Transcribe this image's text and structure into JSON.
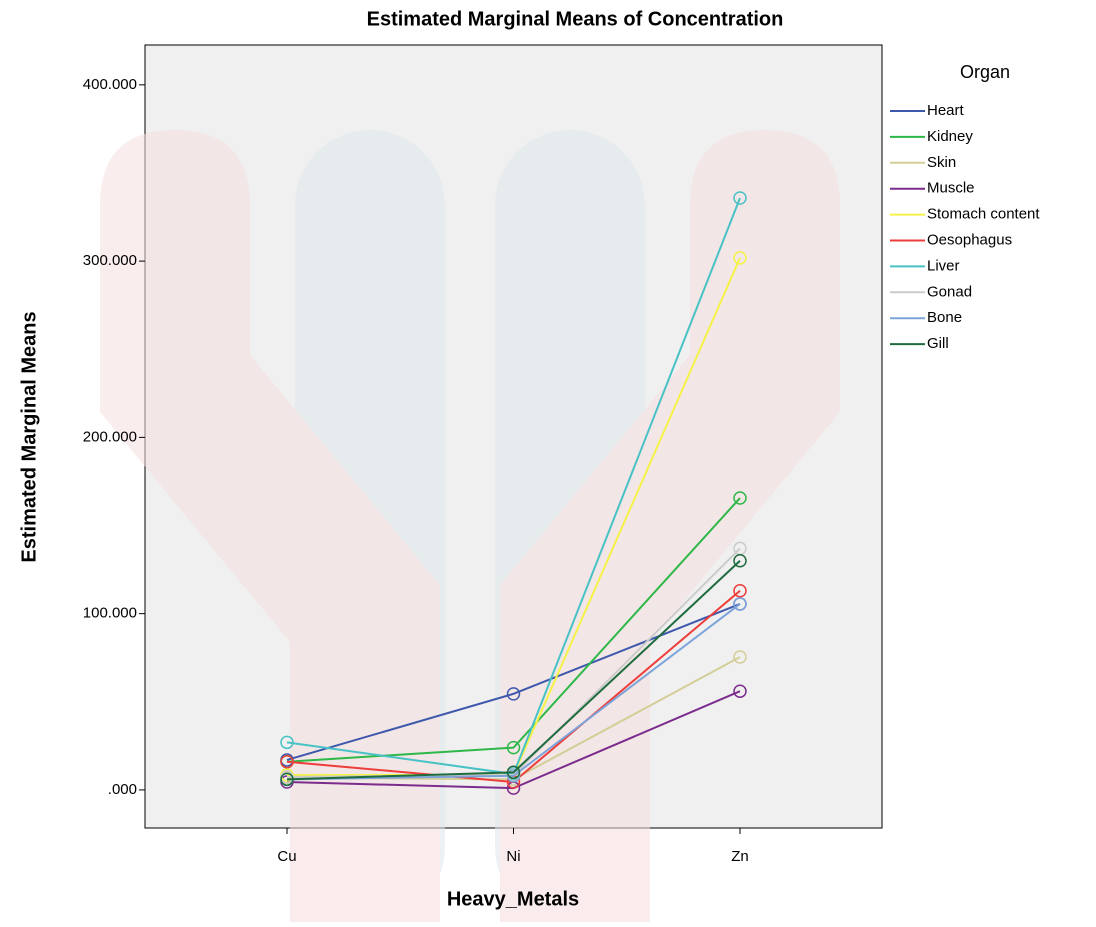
{
  "chart_data": {
    "type": "line",
    "title": "Estimated Marginal Means of Concentration",
    "x_label": "Heavy_Metals",
    "y_label": "Estimated Marginal Means",
    "legend_title": "Organ",
    "legend": "right",
    "grid": false,
    "categories": [
      "Cu",
      "Ni",
      "Zn"
    ],
    "ylim": [
      -21.6,
      422.6
    ],
    "yticks": [
      {
        "value": 0,
        "label": ".000"
      },
      {
        "value": 100,
        "label": "100.000"
      },
      {
        "value": 200,
        "label": "200.000"
      },
      {
        "value": 300,
        "label": "300.000"
      },
      {
        "value": 400,
        "label": "400.000"
      }
    ],
    "series": [
      {
        "name": "Heart",
        "color": "#3e58ac",
        "values": [
          17,
          54.5,
          105.5
        ]
      },
      {
        "name": "Kidney",
        "color": "#2eb848",
        "values": [
          16,
          24,
          165.6
        ]
      },
      {
        "name": "Skin",
        "color": "#d3ce97",
        "values": [
          7,
          6,
          75.4
        ]
      },
      {
        "name": "Muscle",
        "color": "#7b2c8d",
        "values": [
          4.5,
          1,
          56
        ]
      },
      {
        "name": "Stomach content",
        "color": "#f5f247",
        "values": [
          8.5,
          8.5,
          301.8
        ]
      },
      {
        "name": "Oesophagus",
        "color": "#ed3e3b",
        "values": [
          16,
          4.5,
          113
        ]
      },
      {
        "name": "Liver",
        "color": "#48c2c5",
        "values": [
          27,
          9,
          335.8
        ]
      },
      {
        "name": "Gonad",
        "color": "#cccccc",
        "values": [
          7.4,
          8.5,
          137
        ]
      },
      {
        "name": "Bone",
        "color": "#7ca4d9",
        "values": [
          6,
          8,
          105.5
        ]
      },
      {
        "name": "Gill",
        "color": "#1f6c3f",
        "values": [
          6,
          10,
          130
        ]
      }
    ]
  }
}
